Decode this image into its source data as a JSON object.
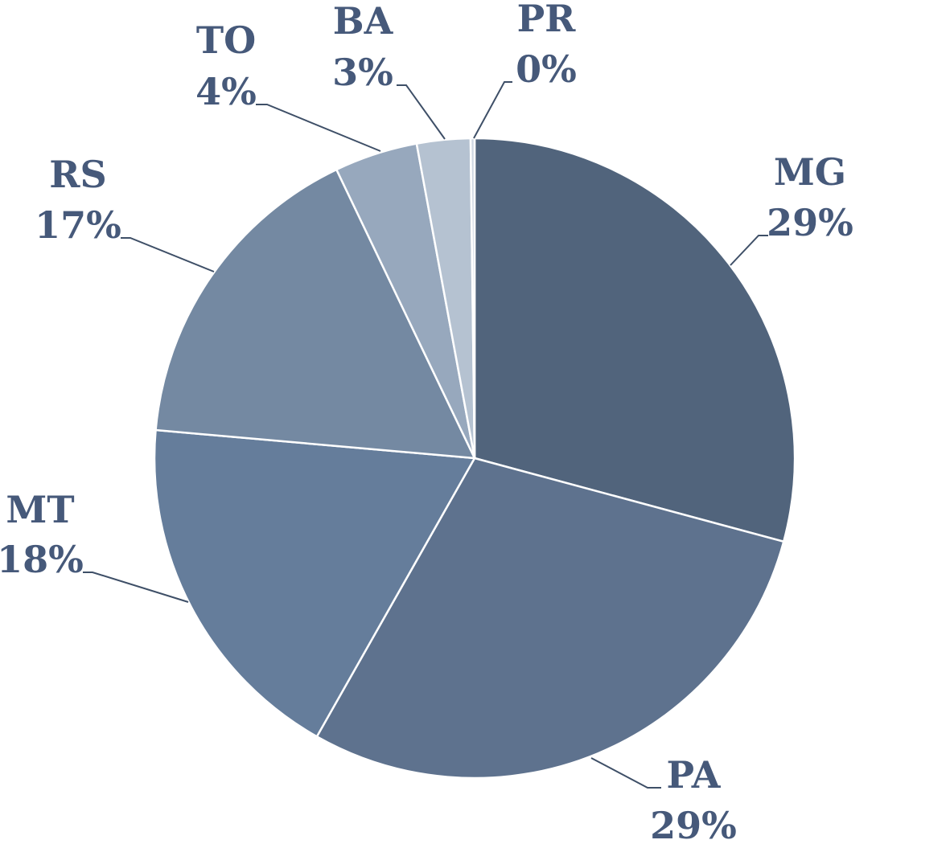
{
  "chart_data": {
    "type": "pie",
    "title": "",
    "start_angle_deg": 0,
    "direction": "clockwise",
    "slices": [
      {
        "label": "MG",
        "value": 29.2,
        "percent_label": "29%",
        "color": "#51647c"
      },
      {
        "label": "PA",
        "value": 29.0,
        "percent_label": "29%",
        "color": "#5e728e"
      },
      {
        "label": "MT",
        "value": 18.2,
        "percent_label": "18%",
        "color": "#657d9b"
      },
      {
        "label": "RS",
        "value": 16.5,
        "percent_label": "17%",
        "color": "#7489a2"
      },
      {
        "label": "TO",
        "value": 4.2,
        "percent_label": "4%",
        "color": "#97a8bd"
      },
      {
        "label": "BA",
        "value": 2.7,
        "percent_label": "3%",
        "color": "#b5c2d1"
      },
      {
        "label": "PR",
        "value": 0.2,
        "percent_label": "0%",
        "color": "#cfd7e2"
      }
    ],
    "legend": "none"
  }
}
